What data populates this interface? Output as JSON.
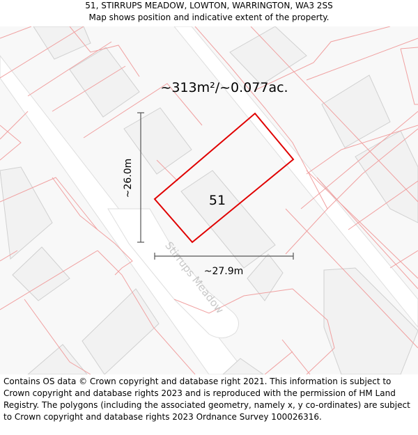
{
  "header": {
    "address": "51, STIRRUPS MEADOW, LOWTON, WARRINGTON, WA3 2SS",
    "subtitle": "Map shows position and indicative extent of the property."
  },
  "map": {
    "area_label": "~313m²/~0.077ac.",
    "plot_number": "51",
    "height_label": "~26.0m",
    "width_label": "~27.9m",
    "street_name": "Stirrups Meadow",
    "colors": {
      "background": "#f8f8f8",
      "road": "#ffffff",
      "building": "#f2f2f2",
      "building_stroke": "#d0d0d0",
      "parcel_line": "#f0a0a0",
      "property_outline": "#e00000",
      "street_label": "#c8c8c8"
    }
  },
  "footer": {
    "attribution": "Contains OS data © Crown copyright and database right 2021. This information is subject to Crown copyright and database rights 2023 and is reproduced with the permission of HM Land Registry. The polygons (including the associated geometry, namely x, y co-ordinates) are subject to Crown copyright and database rights 2023 Ordnance Survey 100026316."
  }
}
